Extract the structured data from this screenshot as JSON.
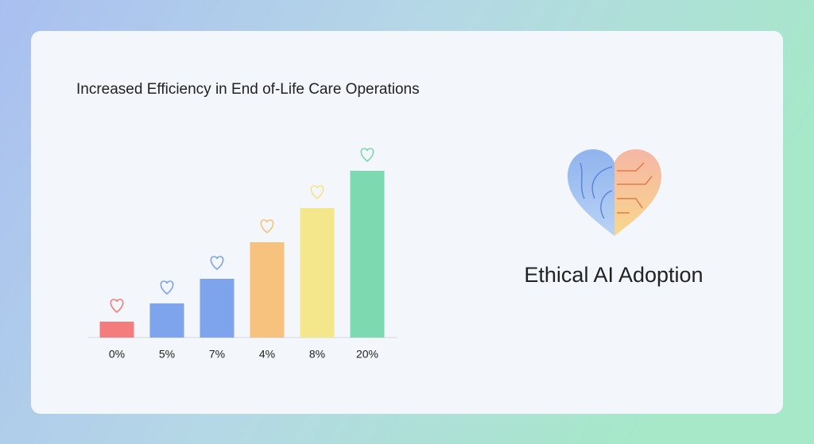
{
  "chart_data": {
    "type": "bar",
    "title": "Increased Efficiency in End of-Life Care Operations",
    "categories": [
      "0%",
      "5%",
      "7%",
      "4%",
      "8%",
      "20%"
    ],
    "values": [
      20,
      43,
      74,
      120,
      163,
      210
    ],
    "colors": [
      "#f47c7c",
      "#7fa4ee",
      "#7fa4ee",
      "#f7c27d",
      "#f4e68a",
      "#7dd9b0"
    ]
  },
  "side_panel": {
    "label": "Ethical AI Adoption"
  }
}
